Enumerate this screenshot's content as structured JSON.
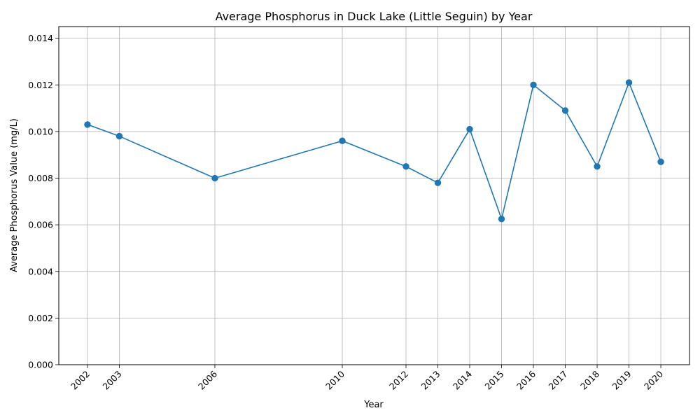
{
  "chart_data": {
    "type": "line",
    "title": "Average Phosphorus in Duck Lake (Little Seguin) by Year",
    "xlabel": "Year",
    "ylabel": "Average Phosphorus Value (mg/L)",
    "x": [
      2002,
      2003,
      2006,
      2010,
      2012,
      2013,
      2014,
      2015,
      2016,
      2017,
      2018,
      2019,
      2020
    ],
    "series": [
      {
        "values": [
          0.0103,
          0.0098,
          0.008,
          0.0096,
          0.0085,
          0.0078,
          0.0101,
          0.00625,
          0.012,
          0.0109,
          0.0085,
          0.0121,
          0.0087
        ],
        "color": "#1f77b4",
        "marker": "circle"
      }
    ],
    "xlim": [
      2001.1,
      2020.9
    ],
    "ylim": [
      0,
      0.0145
    ],
    "x_ticks": [
      "2002",
      "2003",
      "2006",
      "2010",
      "2012",
      "2013",
      "2014",
      "2015",
      "2016",
      "2017",
      "2018",
      "2019",
      "2020"
    ],
    "y_ticks": [
      "0.000",
      "0.002",
      "0.004",
      "0.006",
      "0.008",
      "0.010",
      "0.012",
      "0.014"
    ],
    "grid": true,
    "x_tick_rotation": 45
  }
}
